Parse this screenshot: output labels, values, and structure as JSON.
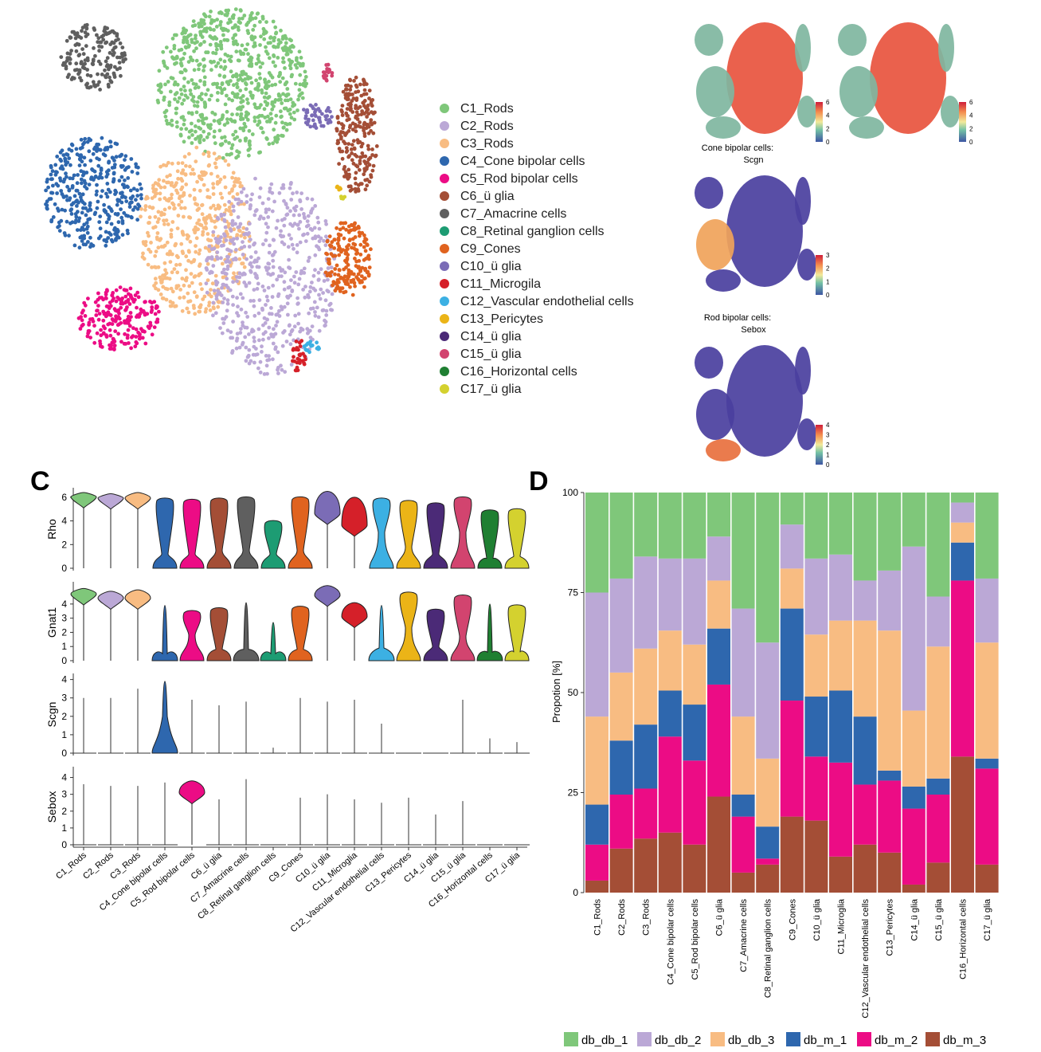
{
  "panels": {
    "c": "C",
    "d": "D"
  },
  "colors": {
    "C1": "#7fc77a",
    "C2": "#bba8d6",
    "C3": "#f8bc82",
    "C4": "#2e67ae",
    "C5": "#ec0c85",
    "C6": "#a44e36",
    "C7": "#5f5f5f",
    "C8": "#1d9c73",
    "C9": "#e0631f",
    "C10": "#7b6cb6",
    "C11": "#d52029",
    "C12": "#3cb0e3",
    "C13": "#ebb417",
    "C14": "#4b2a77",
    "C15": "#d2446f",
    "C16": "#1f7f32",
    "C17": "#d4d12f"
  },
  "tsne_legend": [
    {
      "label": "C1_Rods",
      "color": "#7fc77a"
    },
    {
      "label": "C2_Rods",
      "color": "#bba8d6"
    },
    {
      "label": "C3_Rods",
      "color": "#f8bc82"
    },
    {
      "label": "C4_Cone bipolar cells",
      "color": "#2e67ae"
    },
    {
      "label": "C5_Rod bipolar cells",
      "color": "#ec0c85"
    },
    {
      "label": "C6_ü glia",
      "color": "#a44e36"
    },
    {
      "label": "C7_Amacrine cells",
      "color": "#5f5f5f"
    },
    {
      "label": "C8_Retinal ganglion cells",
      "color": "#1d9c73"
    },
    {
      "label": "C9_Cones",
      "color": "#e0631f"
    },
    {
      "label": "C10_ü glia",
      "color": "#7b6cb6"
    },
    {
      "label": "C11_Microgila",
      "color": "#d52029"
    },
    {
      "label": "C12_Vascular endothelial cells",
      "color": "#3cb0e3"
    },
    {
      "label": "C13_Pericytes",
      "color": "#ebb417"
    },
    {
      "label": "C14_ü glia",
      "color": "#4b2a77"
    },
    {
      "label": "C15_ü glia",
      "color": "#d2446f"
    },
    {
      "label": "C16_Horizontal cells",
      "color": "#1f7f32"
    },
    {
      "label": "C17_ü glia",
      "color": "#d4d12f"
    }
  ],
  "feature_maps": [
    {
      "title_line1": "",
      "title_line2": "",
      "scale_ticks": [
        "6",
        "4",
        "2",
        "0"
      ],
      "scale_max": 6,
      "level": "high"
    },
    {
      "title_line1": "",
      "title_line2": "",
      "scale_ticks": [
        "6",
        "4",
        "2",
        "0"
      ],
      "scale_max": 6,
      "level": "high"
    },
    {
      "title_line1": "Cone bipolar cells:",
      "title_line2": "Scgn",
      "scale_ticks": [
        "3",
        "2",
        "1",
        "0"
      ],
      "scale_max": 3,
      "level": "c4"
    },
    {
      "title_line1": "Rod bipolar cells:",
      "title_line2": "Sebox",
      "scale_ticks": [
        "4",
        "3",
        "2",
        "1",
        "0"
      ],
      "scale_max": 4,
      "level": "c5"
    }
  ],
  "chart_data": [
    {
      "type": "violin",
      "panel": "C",
      "categories": [
        "C1_Rods",
        "C2_Rods",
        "C3_Rods",
        "C4_Cone bipolar cells",
        "C5_Rod bipolar cells",
        "C6_ü glia",
        "C7_Amacrine cells",
        "C8_Retinal ganglion cells",
        "C9_Cones",
        "C10_ü glia",
        "C11_Microglia",
        "C12_Vascular endothelial cells",
        "C13_Pericytes",
        "C14_ü glia",
        "C15_ü glia",
        "C16_Horizontal cells",
        "C17_ü glia"
      ],
      "genes": [
        {
          "name": "Rho",
          "ticks": [
            0,
            2,
            4,
            6
          ],
          "ymax": 6.6,
          "max": [
            6.4,
            6.3,
            6.4,
            6.0,
            5.9,
            6.0,
            6.1,
            4.1,
            6.1,
            6.5,
            6.0,
            6.0,
            5.8,
            5.6,
            6.1,
            5.0,
            5.1
          ],
          "med": [
            5.9,
            5.8,
            5.8,
            1.2,
            1.2,
            1.5,
            1.5,
            1.2,
            1.5,
            4.5,
            3.5,
            3.0,
            1.8,
            1.2,
            3.0,
            0.8,
            1.0
          ],
          "shape": [
            "top",
            "top",
            "top",
            "bimodal",
            "bimodal",
            "bimodal",
            "bimodal",
            "bimodal",
            "bimodal",
            "top",
            "top",
            "bimodal",
            "bimodal",
            "bimodal",
            "bimodal",
            "bimodal",
            "bimodal"
          ]
        },
        {
          "name": "Gnat1",
          "ticks": [
            0,
            1,
            2,
            3,
            4
          ],
          "ymax": 5.4,
          "max": [
            5.1,
            4.9,
            5.0,
            3.9,
            3.6,
            3.8,
            4.1,
            2.7,
            3.9,
            5.3,
            4.1,
            3.9,
            4.9,
            3.7,
            4.7,
            4.0,
            4.0
          ],
          "med": [
            4.6,
            4.3,
            4.3,
            0.5,
            1.8,
            0.8,
            0.8,
            0.5,
            0.8,
            4.5,
            3.0,
            0.9,
            2.3,
            1.0,
            1.7,
            0.6,
            0.6
          ],
          "shape": [
            "top",
            "top",
            "top",
            "bottom",
            "bimodal",
            "bimodal",
            "bottom",
            "bottom",
            "bimodal",
            "top",
            "top",
            "bottom",
            "bimodal",
            "bimodal",
            "bimodal",
            "bottom",
            "bimodal"
          ]
        },
        {
          "name": "Scgn",
          "ticks": [
            0,
            1,
            2,
            3,
            4
          ],
          "ymax": 4.2,
          "max": [
            3.0,
            3.0,
            3.5,
            3.9,
            2.9,
            2.6,
            2.8,
            0.3,
            3.0,
            2.8,
            2.9,
            1.6,
            0,
            0,
            2.9,
            0.8,
            0.6
          ],
          "med": [
            0,
            0,
            0,
            2.0,
            0,
            0,
            0,
            0,
            0,
            0,
            0,
            0,
            0,
            0,
            0,
            0,
            0
          ],
          "shape": [
            "line",
            "line",
            "line",
            "bottom",
            "line",
            "line",
            "line",
            "line",
            "line",
            "line",
            "line",
            "line",
            "line",
            "line",
            "line",
            "line",
            "line"
          ]
        },
        {
          "name": "Sebox",
          "ticks": [
            0,
            1,
            2,
            3,
            4
          ],
          "ymax": 4.5,
          "max": [
            3.6,
            3.5,
            3.5,
            3.7,
            3.8,
            2.7,
            3.9,
            0,
            2.8,
            3.0,
            2.7,
            2.5,
            2.8,
            1.8,
            2.6,
            0,
            0
          ],
          "med": [
            0,
            0,
            0,
            0,
            3.0,
            0,
            0,
            0,
            0,
            0,
            0,
            0,
            0,
            0,
            0,
            0,
            0
          ],
          "shape": [
            "line",
            "line",
            "line",
            "line",
            "top",
            "line",
            "line",
            "line",
            "line",
            "line",
            "line",
            "line",
            "line",
            "line",
            "line",
            "line",
            "line"
          ]
        }
      ]
    },
    {
      "type": "stacked_bar",
      "panel": "D",
      "ylabel": "Propotion [%]",
      "ylim": [
        0,
        100
      ],
      "yticks": [
        0,
        25,
        50,
        75,
        100
      ],
      "categories": [
        "C1_Rods",
        "C2_Rods",
        "C3_Rods",
        "C4_Cone bipolar cells",
        "C5_Rod bipolar cells",
        "C6_ü glia",
        "C7_Amacrine cells",
        "C8_Retinal ganglion cells",
        "C9_Cones",
        "C10_ü glia",
        "C11_Microglia",
        "C12_Vascular endothelial cells",
        "C13_Pericytes",
        "C14_ü glia",
        "C15_ü glia",
        "C16_Horizontal cells",
        "C17_ü glia"
      ],
      "series": [
        {
          "name": "db_m_3",
          "color": "#a44e36",
          "values": [
            3,
            11,
            13.5,
            15,
            12,
            24,
            5,
            7,
            19,
            18,
            9,
            12,
            10,
            2,
            7.5,
            34,
            7
          ]
        },
        {
          "name": "db_m_2",
          "color": "#ec0c85",
          "values": [
            9,
            13.5,
            12.5,
            24,
            21,
            28,
            14,
            1.5,
            29,
            16,
            23.5,
            15,
            18,
            19,
            17,
            44,
            24
          ]
        },
        {
          "name": "db_m_1",
          "color": "#2e67ae",
          "values": [
            10,
            13.5,
            16,
            11.5,
            14,
            14,
            5.5,
            8,
            23,
            15,
            18,
            17,
            2.5,
            5.5,
            4,
            9.5,
            2.5
          ]
        },
        {
          "name": "db_db_3",
          "color": "#f8bc82",
          "values": [
            22,
            17,
            19,
            15,
            15,
            12,
            19.5,
            17,
            10,
            15.5,
            17.5,
            24,
            35,
            19,
            33,
            5,
            29
          ]
        },
        {
          "name": "db_db_2",
          "color": "#bba8d6",
          "values": [
            31,
            23.5,
            23,
            18,
            21.5,
            11,
            27,
            29,
            11,
            19,
            16.5,
            10,
            15,
            41,
            12.5,
            5,
            16
          ]
        },
        {
          "name": "db_db_1",
          "color": "#7fc77a",
          "values": [
            25,
            21.5,
            16,
            16.5,
            16.5,
            11,
            29,
            37.5,
            8,
            16.5,
            15.5,
            22,
            19.5,
            13.5,
            26,
            2.5,
            21.5
          ]
        }
      ],
      "legend": [
        "db_db_1",
        "db_db_2",
        "db_db_3",
        "db_m_1",
        "db_m_2",
        "db_m_3"
      ]
    }
  ]
}
